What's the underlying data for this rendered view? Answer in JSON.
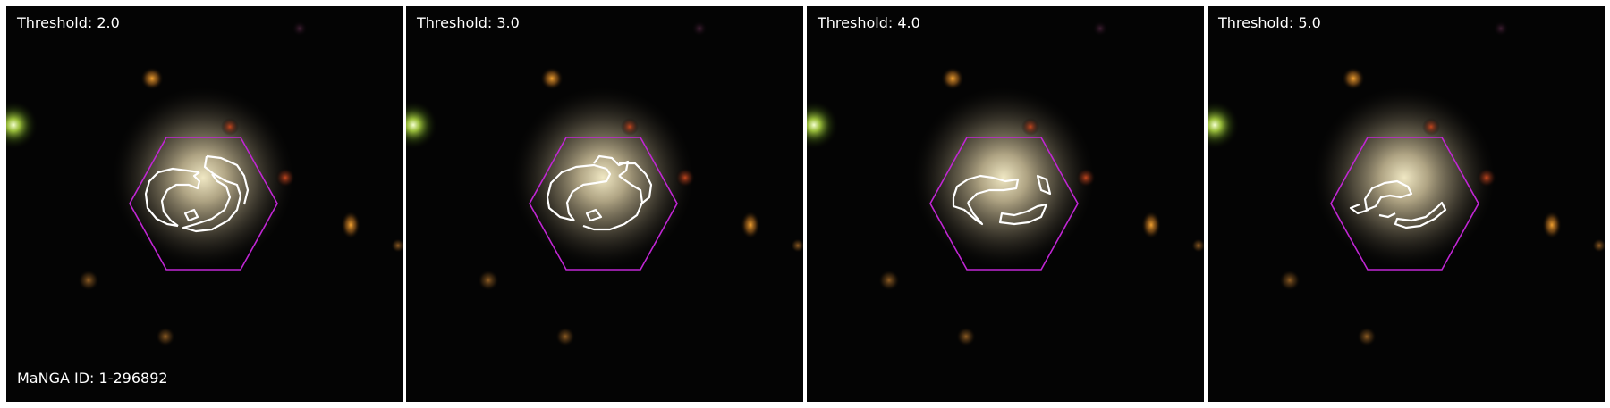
{
  "panels": [
    {
      "label": "Threshold: 2.0"
    },
    {
      "label": "Threshold: 3.0"
    },
    {
      "label": "Threshold: 4.0"
    },
    {
      "label": "Threshold: 5.0"
    }
  ],
  "galaxy_id": "MaNGA ID: 1-296892",
  "colors": {
    "background": "#040404",
    "hexagon": "#c026d3",
    "contour": "#ffffff",
    "galaxy_core": "#ddd6b4"
  }
}
